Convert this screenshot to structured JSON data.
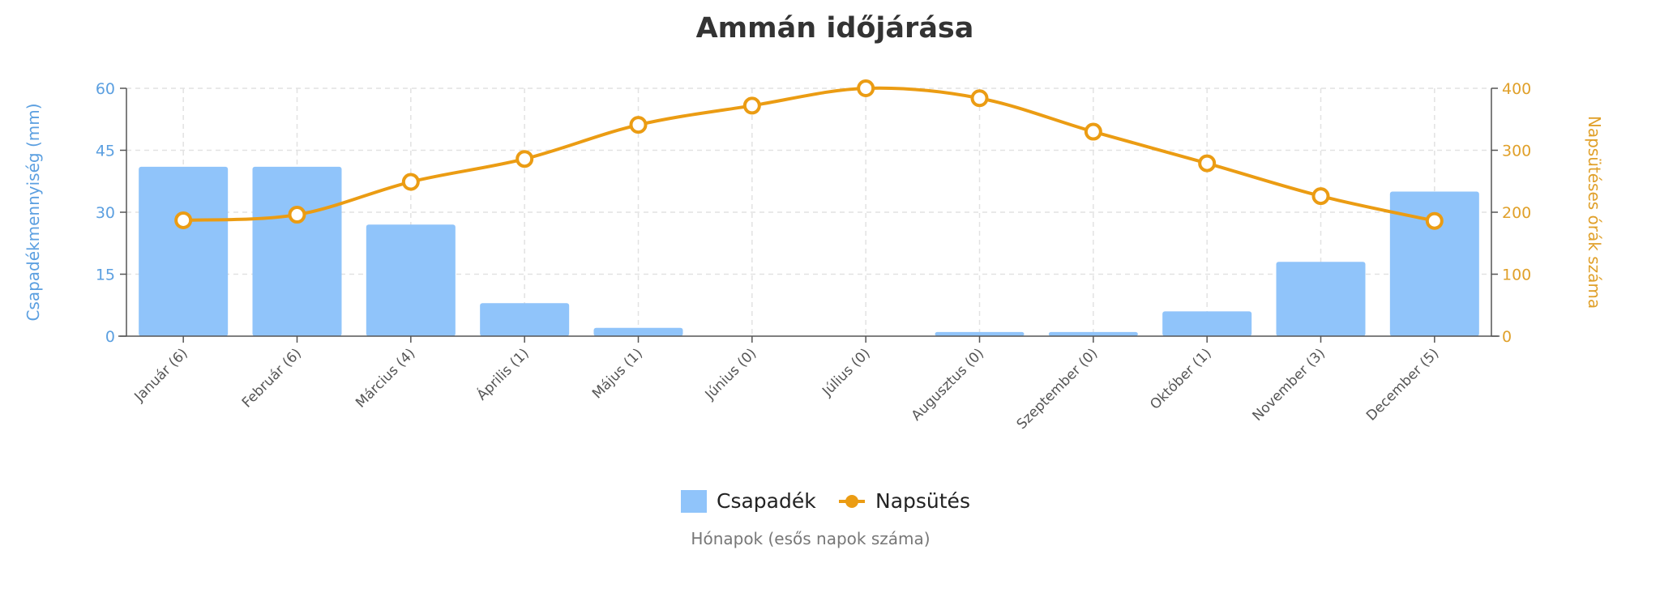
{
  "chart_data": {
    "type": "bar+line",
    "title": "Ammán időjárása",
    "xlabel": "Hónapok (esős napok száma)",
    "ylabel_left": "Csapadékmennyiség (mm)",
    "ylabel_right": "Napsütéses órák száma",
    "categories": [
      "Január (6)",
      "Február (6)",
      "Március (4)",
      "Április (1)",
      "Május (1)",
      "Június (0)",
      "Július (0)",
      "Augusztus (0)",
      "Szeptember (0)",
      "Október (1)",
      "November (3)",
      "December (5)"
    ],
    "ylim_left": [
      0,
      60
    ],
    "yticks_left": [
      0,
      15,
      30,
      45,
      60
    ],
    "ylim_right": [
      0,
      400
    ],
    "yticks_right": [
      0,
      100,
      200,
      300,
      400
    ],
    "grid": true,
    "legend_position": "bottom",
    "series": [
      {
        "name": "Csapadék",
        "type": "bar",
        "axis": "left",
        "color": "#90c4fa",
        "values": [
          41,
          41,
          27,
          8,
          2,
          0,
          0,
          1,
          1,
          6,
          18,
          35
        ]
      },
      {
        "name": "Napsütés",
        "type": "line",
        "axis": "right",
        "color": "#eb9c13",
        "values": [
          187,
          196,
          249,
          286,
          341,
          372,
          400,
          384,
          330,
          279,
          226,
          186
        ]
      }
    ],
    "colors": {
      "left_axis": "#5b9fe0",
      "right_axis": "#e0a02a",
      "title": "#333333"
    }
  }
}
